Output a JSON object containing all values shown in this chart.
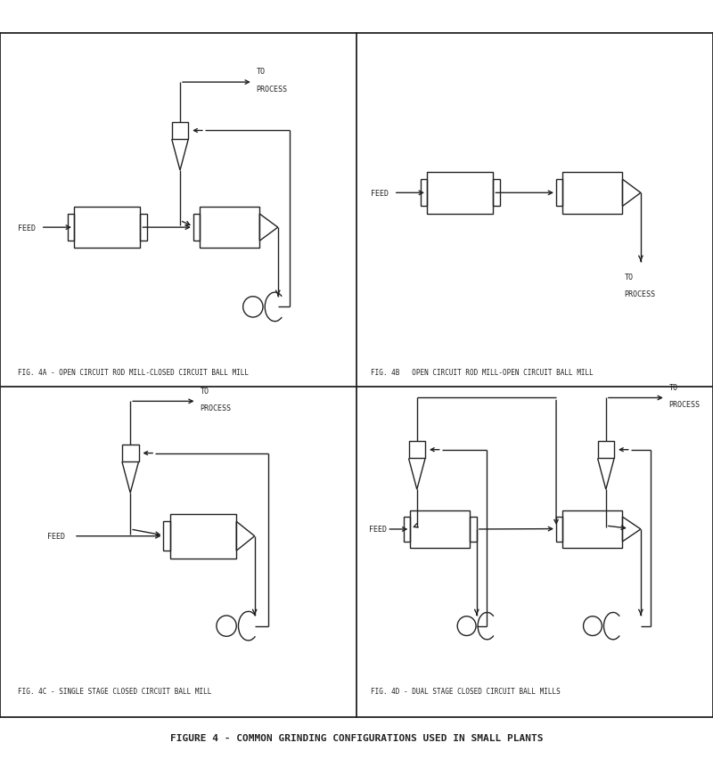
{
  "title": "FIGURE 4 - COMMON GRINDING CONFIGURATIONS USED IN SMALL PLANTS",
  "fig_4a_label": "FIG. 4A - OPEN CIRCUIT ROD MILL-CLOSED CIRCUIT BALL MILL",
  "fig_4b_label": "FIG. 4B   OPEN CIRCUIT ROD MILL-OPEN CIRCUIT BALL MILL",
  "fig_4c_label": "FIG. 4C - SINGLE STAGE CLOSED CIRCUIT BALL MILL",
  "fig_4d_label": "FIG. 4D - DUAL STAGE CLOSED CIRCUIT BALL MILLS",
  "bg_color": "#ffffff",
  "line_color": "#222222",
  "label_fs": 6.0,
  "title_fs": 8.0
}
